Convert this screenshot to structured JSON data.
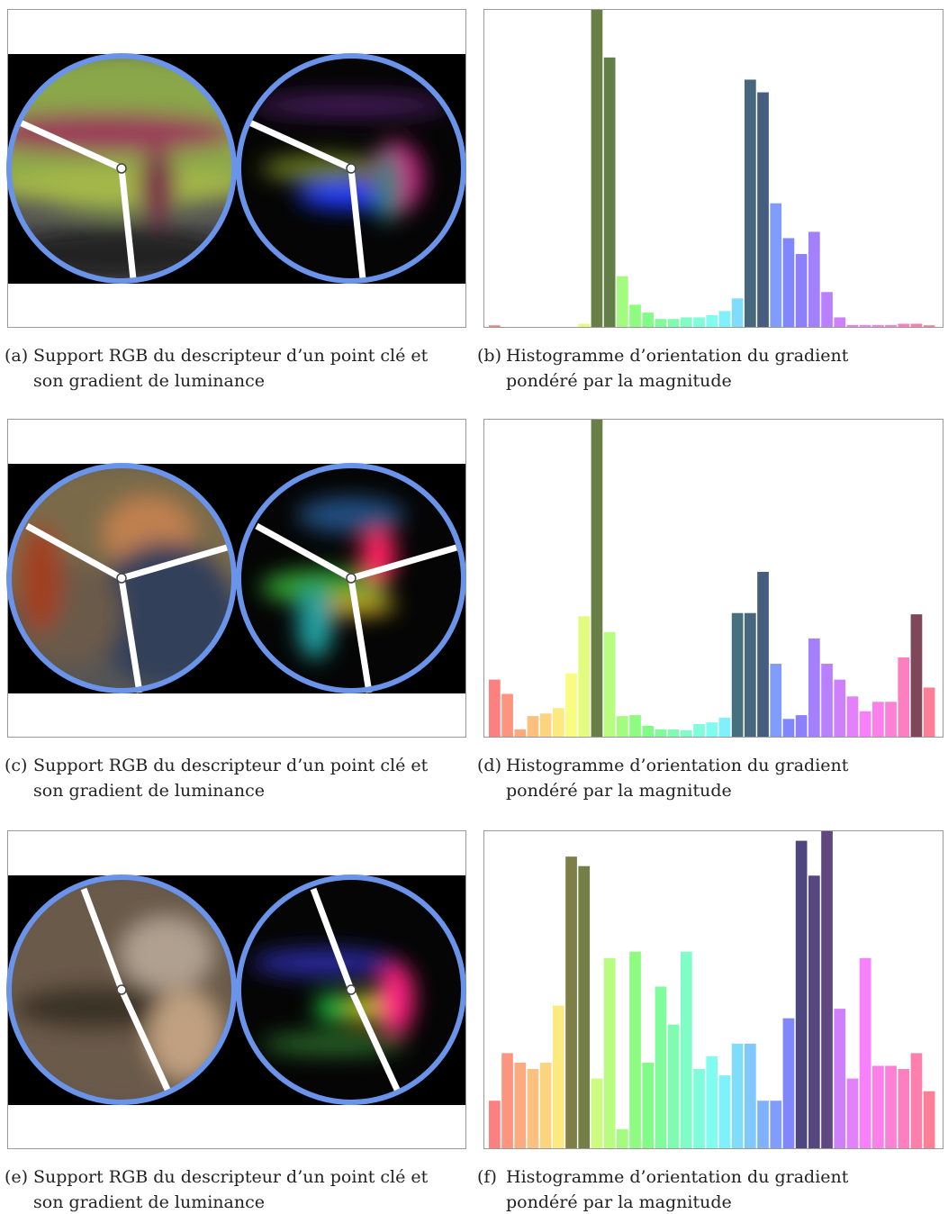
{
  "rows": [
    {
      "image": {
        "label": "(a)",
        "caption": "Support RGB du descripteur d’un point clé et son gradient de luminance"
      },
      "histogram": {
        "label": "(b)",
        "caption": "Histogramme d’orientation du gradient pondéré par la magnitude",
        "values": [
          0.5,
          0,
          0,
          0,
          0,
          0,
          0,
          1,
          100,
          85,
          16,
          7,
          4.5,
          2.5,
          2.5,
          3,
          3,
          3.7,
          5,
          9,
          78,
          74,
          39,
          28,
          23,
          30,
          11,
          3,
          0.6,
          0.6,
          0.6,
          0.6,
          1,
          1,
          0.5
        ],
        "peaks": [
          8,
          9,
          20,
          21
        ]
      }
    },
    {
      "image": {
        "label": "(c)",
        "caption": "Support RGB du descripteur d’un point clé et son gradient de luminance"
      },
      "histogram": {
        "label": "(d)",
        "caption": "Histogramme d’orientation du gradient pondéré par la magnitude",
        "values": [
          18,
          13.5,
          2.3,
          6.5,
          7.3,
          9,
          20,
          38,
          100,
          33,
          6.5,
          6.8,
          3.4,
          2.3,
          2.3,
          2,
          4,
          4.5,
          6,
          39,
          39,
          52,
          23,
          5.6,
          6.8,
          31,
          23,
          18,
          12.7,
          8,
          11,
          11,
          25,
          38.6,
          15.5
        ],
        "peaks": [
          8,
          19,
          20,
          21,
          33
        ]
      }
    },
    {
      "image": {
        "label": "(e)",
        "caption": "Support RGB du descripteur d’un point clé et son gradient de luminance"
      },
      "histogram": {
        "label": "(f)",
        "caption": "Histogramme d’orientation du gradient pondéré par la magnitude",
        "values": [
          15,
          30,
          27,
          25,
          27,
          45,
          92,
          89,
          22,
          60,
          6,
          62,
          27,
          51,
          39,
          62,
          25,
          29,
          23,
          33,
          33,
          15,
          15,
          41,
          97,
          86,
          100,
          44,
          22,
          60,
          26,
          26,
          25,
          30,
          18
        ],
        "peaks": [
          6,
          7,
          24,
          25,
          26
        ]
      }
    }
  ]
}
